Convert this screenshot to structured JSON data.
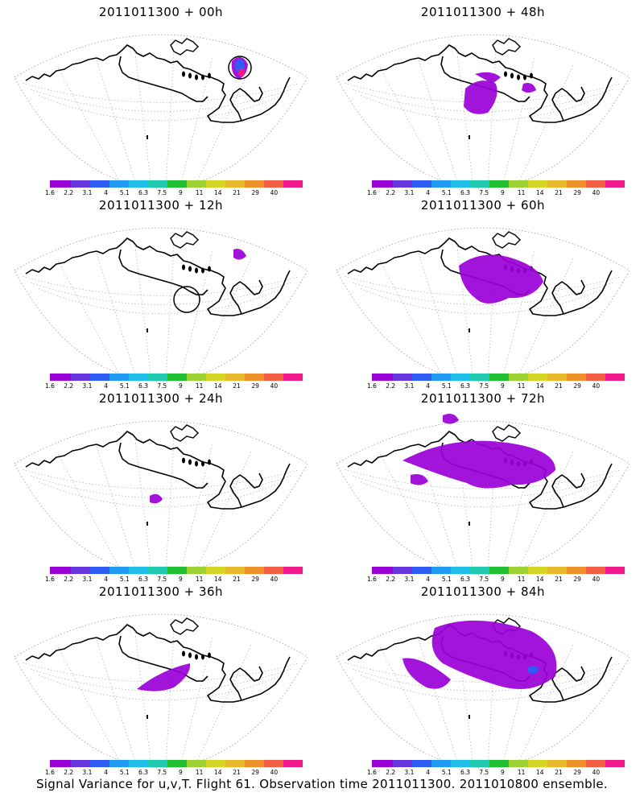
{
  "panels": [
    {
      "title": "2011011300 + 00h"
    },
    {
      "title": "2011011300 + 48h"
    },
    {
      "title": "2011011300 + 12h"
    },
    {
      "title": "2011011300 + 60h"
    },
    {
      "title": "2011011300 + 24h"
    },
    {
      "title": "2011011300 + 72h"
    },
    {
      "title": "2011011300 + 36h"
    },
    {
      "title": "2011011300 + 84h"
    }
  ],
  "colorbar": {
    "labels": [
      "1.6",
      "2.2",
      "3.1",
      "4",
      "5.1",
      "6.3",
      "7.5",
      "9",
      "11",
      "14",
      "21",
      "29",
      "40"
    ],
    "colors": [
      "#9b00d8",
      "#6a35e0",
      "#2f5cf5",
      "#1f99f2",
      "#20c0e8",
      "#20c8b0",
      "#20c030",
      "#9bd230",
      "#d6d626",
      "#e6b82a",
      "#f0902a",
      "#f45e44",
      "#f01a8c"
    ]
  },
  "footer": "Signal Variance for u,v,T. Flight 61. Observation time 2011011300. 2011010800 ensemble."
}
